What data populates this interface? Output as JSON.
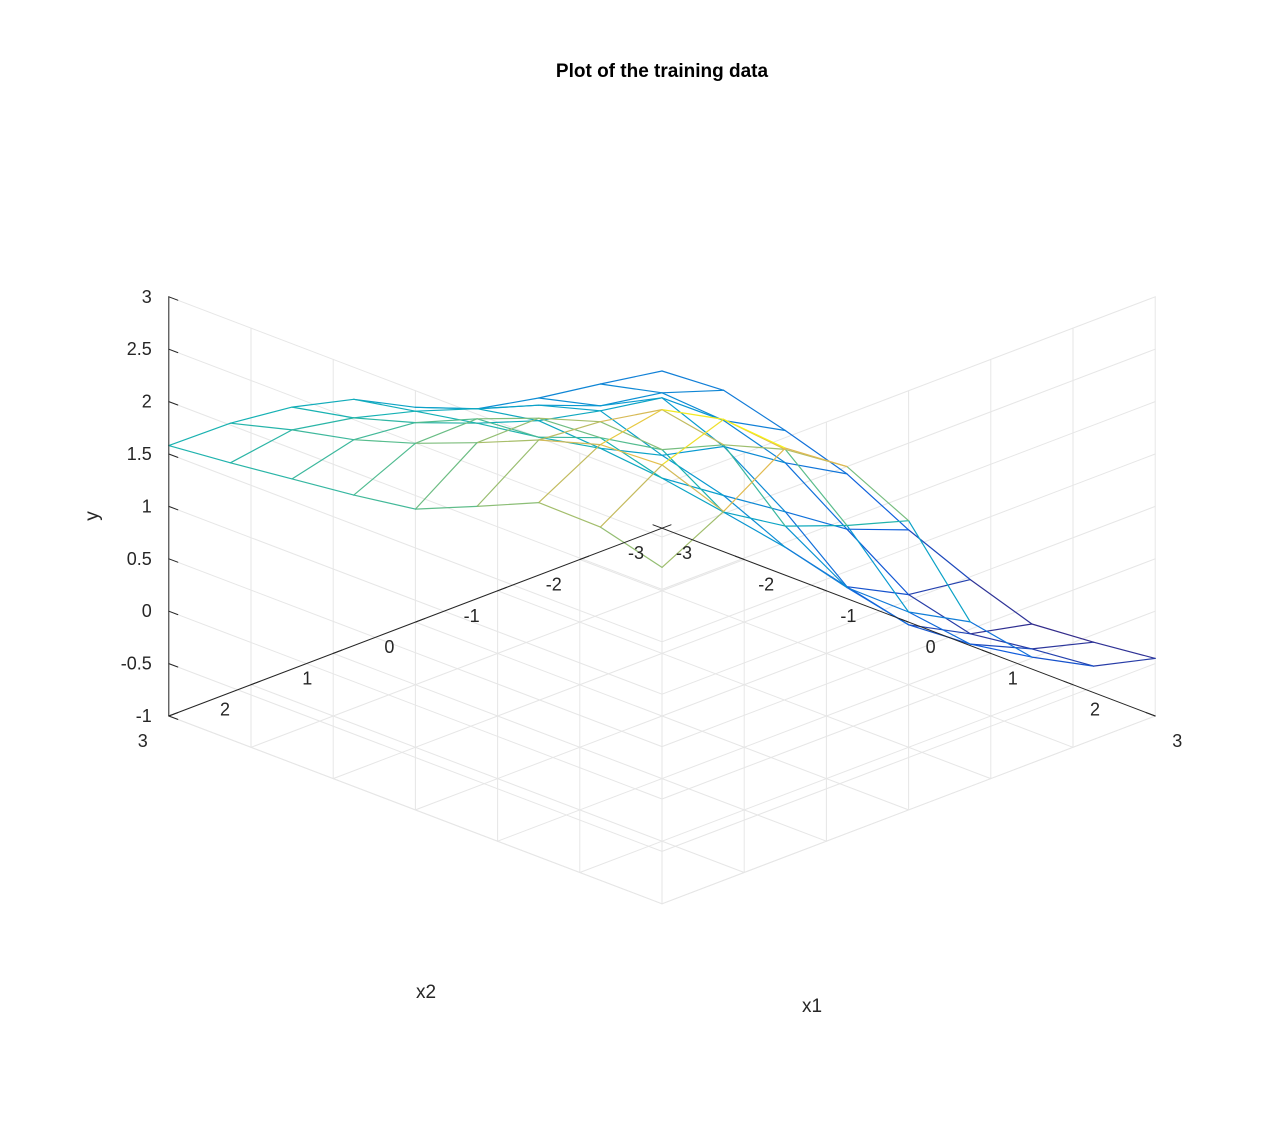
{
  "chart_data": {
    "type": "mesh",
    "title": "Plot of the training data",
    "xlabel": "x1",
    "ylabel": "x2",
    "zlabel": "y",
    "xlim": [
      -3,
      3
    ],
    "ylim": [
      -3,
      3
    ],
    "zlim": [
      -1,
      3
    ],
    "x_ticks": [
      "-3",
      "-2",
      "-1",
      "0",
      "1",
      "2",
      "3"
    ],
    "y_ticks": [
      "-3",
      "-2",
      "-1",
      "0",
      "1",
      "2",
      "3"
    ],
    "z_ticks": [
      "-1",
      "-0.5",
      "0",
      "0.5",
      "1",
      "1.5",
      "2",
      "2.5",
      "3"
    ],
    "z_tick_values": [
      -1,
      -0.5,
      0,
      0.5,
      1,
      1.5,
      2,
      2.5,
      3
    ],
    "grid": true,
    "colormap": "parula",
    "x": [
      -3.0,
      -2.25,
      -1.5,
      -0.75,
      0.0,
      0.75,
      1.5,
      2.25,
      3.0
    ],
    "y": [
      -3.0,
      -2.25,
      -1.5,
      -0.75,
      0.0,
      0.75,
      1.5,
      2.25,
      3.0
    ],
    "z": [
      [
        0.5,
        0.54,
        0.38,
        0.19,
        -0.12,
        -0.37,
        -0.57,
        -0.52,
        -0.45
      ],
      [
        0.6,
        0.74,
        0.7,
        0.52,
        0.11,
        -0.29,
        -0.44,
        -0.36,
        -0.3
      ],
      [
        0.69,
        0.84,
        1.14,
        0.9,
        0.5,
        0.01,
        -0.13,
        -0.09,
        0.01
      ],
      [
        0.81,
        1.07,
        1.24,
        1.04,
        0.88,
        0.61,
        0.45,
        0.44,
        0.57
      ],
      [
        1.05,
        1.26,
        1.37,
        1.33,
        1.27,
        1.17,
        1.26,
        1.49,
        1.76
      ],
      [
        1.35,
        1.46,
        1.57,
        1.66,
        1.88,
        1.99,
        2.26,
        2.44,
        2.5
      ],
      [
        1.5,
        1.62,
        1.8,
        2.06,
        2.29,
        2.48,
        2.82,
        2.95,
        2.9
      ],
      [
        1.57,
        1.73,
        1.86,
        2.05,
        2.28,
        2.53,
        2.71,
        2.74,
        2.52
      ],
      [
        1.58,
        1.64,
        1.71,
        1.78,
        1.87,
        2.12,
        2.38,
        2.37,
        2.21
      ]
    ]
  }
}
